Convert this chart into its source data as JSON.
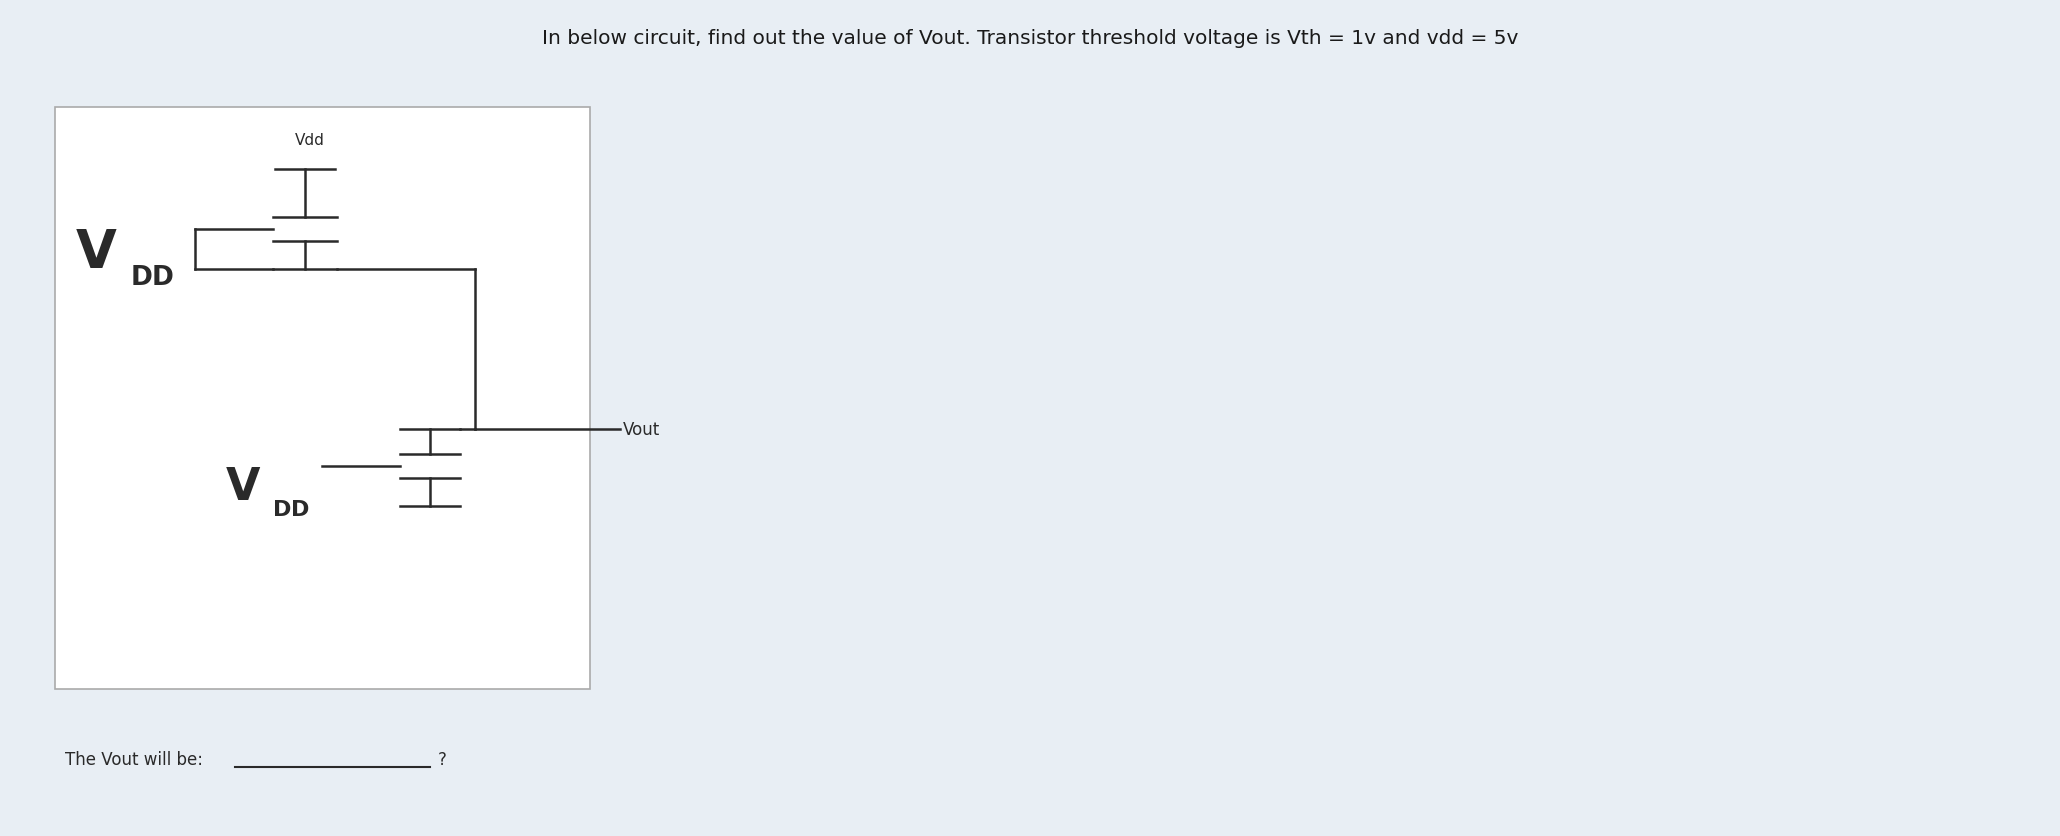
{
  "title": "In below circuit, find out the value of Vout. Transistor threshold voltage is Vth = 1v and vdd = 5v",
  "title_fontsize": 14.5,
  "title_color": "#1a1a1a",
  "bg_color": "#e8eef4",
  "box_bg": "#ffffff",
  "line_color": "#2a2a2a",
  "line_width": 1.8,
  "label_bottom": "The Vout will be:",
  "label_question": "?",
  "vdd_label_top": "Vdd",
  "vout_label": "Vout"
}
